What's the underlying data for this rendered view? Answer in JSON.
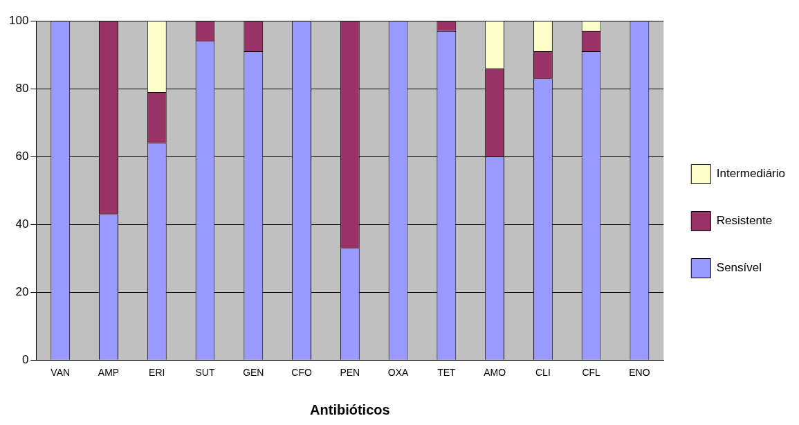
{
  "chart_data": {
    "type": "bar",
    "xlabel": "Antibióticos",
    "stacked": true,
    "grid": "y",
    "legend": "right",
    "categories": [
      "VAN",
      "AMP",
      "ERI",
      "SUT",
      "GEN",
      "CFO",
      "PEN",
      "OXA",
      "TET",
      "AMO",
      "CLI",
      "CFL",
      "ENO"
    ],
    "ylim": [
      0,
      100
    ],
    "yticks": [
      0,
      20,
      40,
      60,
      80,
      100
    ],
    "series": [
      {
        "name": "Sensível",
        "color": "#9999ff",
        "values": [
          100,
          43,
          64,
          94,
          91,
          100,
          33,
          100,
          97,
          60,
          83,
          91,
          100
        ]
      },
      {
        "name": "Resistente",
        "color": "#993366",
        "values": [
          0,
          57,
          15,
          6,
          9,
          0,
          67,
          0,
          3,
          26,
          8,
          6,
          0
        ]
      },
      {
        "name": "Intermediário",
        "color": "#ffffcc",
        "values": [
          0,
          0,
          21,
          0,
          0,
          0,
          0,
          0,
          0,
          14,
          9,
          3,
          0
        ]
      }
    ]
  }
}
